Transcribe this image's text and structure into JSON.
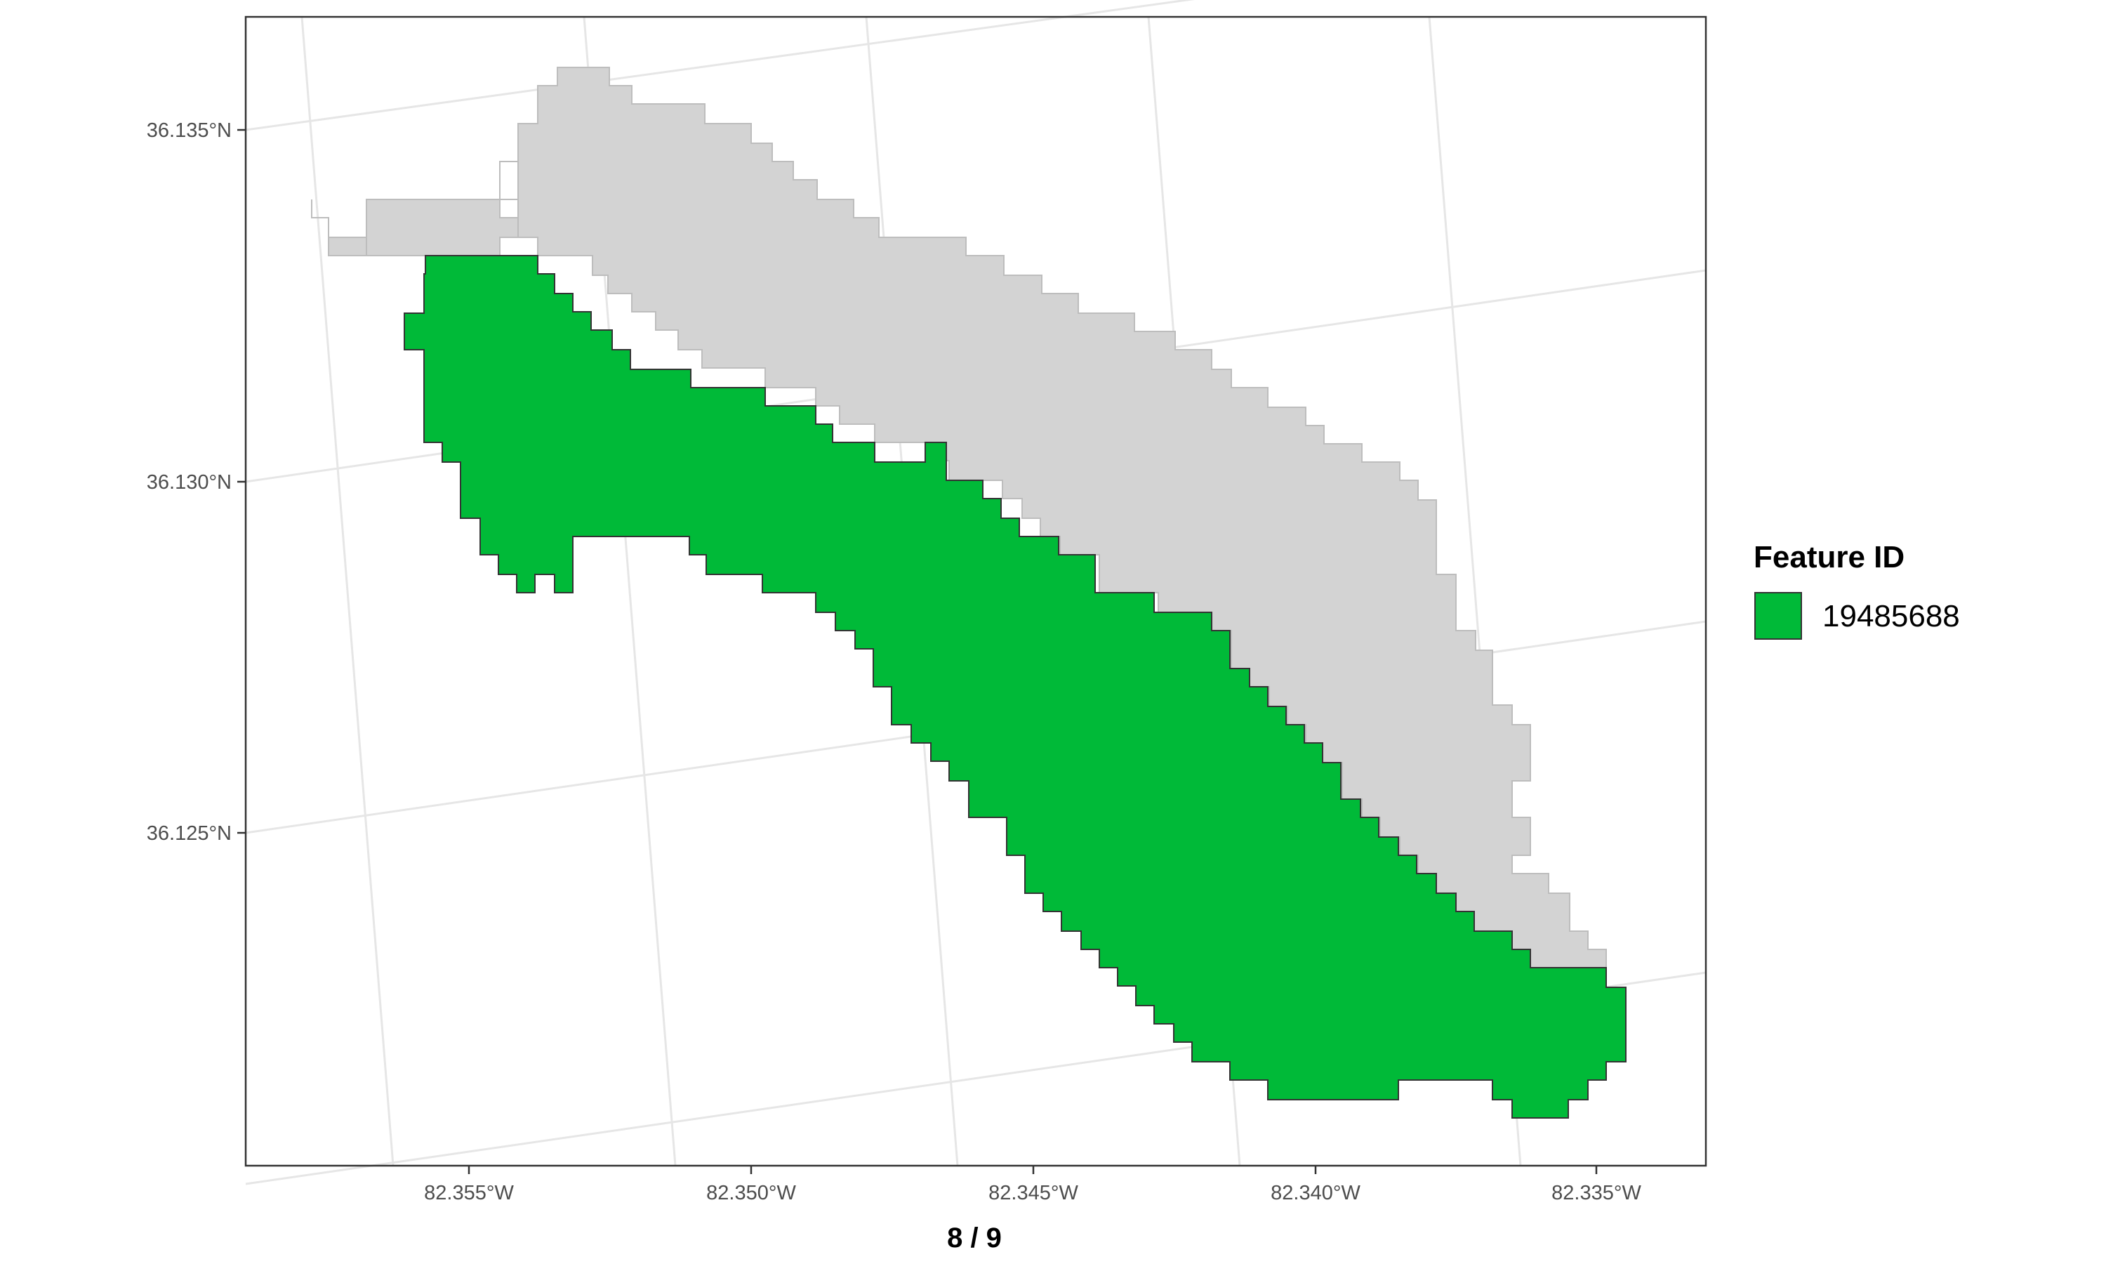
{
  "caption": "8 / 9",
  "legend": {
    "title": "Feature ID",
    "entries": [
      {
        "label": "19485688",
        "color": "#00BA38"
      }
    ]
  },
  "colors": {
    "background_feature": "#d3d3d3",
    "background_stroke": "#bdbdbd",
    "highlight_feature": "#00BA38",
    "highlight_stroke": "#333333",
    "graticule": "#e6e6e6",
    "panel_border": "#333333"
  },
  "axes": {
    "x_ticks": [
      {
        "value": -82.355,
        "label": "82.355°W"
      },
      {
        "value": -82.35,
        "label": "82.350°W"
      },
      {
        "value": -82.345,
        "label": "82.345°W"
      },
      {
        "value": -82.34,
        "label": "82.340°W"
      },
      {
        "value": -82.335,
        "label": "82.335°W"
      }
    ],
    "y_ticks": [
      {
        "value": 36.135,
        "label": "36.135°N"
      },
      {
        "value": 36.13,
        "label": "36.130°N"
      },
      {
        "value": 36.125,
        "label": "36.125°N"
      }
    ]
  }
}
